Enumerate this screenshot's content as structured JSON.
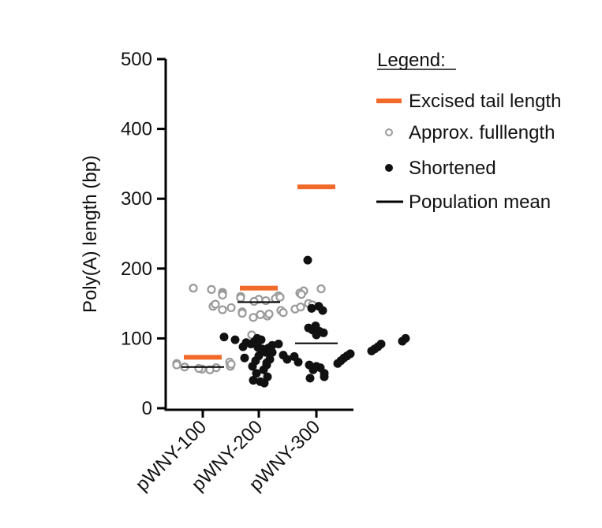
{
  "chart_data": {
    "type": "scatter",
    "title": "",
    "xlabel": "",
    "ylabel": "Poly(A) length (bp)",
    "ylim": [
      0,
      500
    ],
    "yticks": [
      0,
      100,
      200,
      300,
      400,
      500
    ],
    "grid": false,
    "legend_position": "top-right",
    "categories": [
      "pWNY-100",
      "pWNY-200",
      "pWNY-300"
    ],
    "legend": {
      "title": "Legend:",
      "items": [
        {
          "key": "excised",
          "label": "Excised tail length",
          "marker": "orange-bar"
        },
        {
          "key": "full",
          "label": "Approx. fulllength",
          "marker": "gray-open-circle"
        },
        {
          "key": "short",
          "label": "Shortened",
          "marker": "black-filled-circle"
        },
        {
          "key": "mean",
          "label": "Population mean",
          "marker": "black-line"
        }
      ]
    },
    "colors": {
      "excised": "#f26a2a",
      "full": "#9a9a9a",
      "short": "#111111",
      "mean": "#000000"
    },
    "excised_tail_length": [
      73,
      172,
      317
    ],
    "population_mean": [
      59,
      152,
      93
    ],
    "approx_fulllength": [
      [
        66,
        64,
        62,
        60,
        58,
        56,
        57,
        59,
        55,
        63
      ],
      [
        172,
        170,
        168,
        166,
        164,
        162,
        160,
        158,
        156,
        154,
        150,
        148,
        146,
        144,
        142,
        140,
        138,
        136,
        134,
        132,
        130,
        171,
        165,
        161,
        157,
        153,
        149,
        145,
        141,
        137,
        135,
        163,
        159,
        105
      ],
      []
    ],
    "shortened": [
      [],
      [
        100,
        98,
        95,
        92,
        90,
        87,
        85,
        82,
        80,
        75,
        72,
        70,
        68,
        65,
        62,
        60,
        55,
        50,
        45,
        40,
        38,
        36,
        92,
        88
      ],
      [
        212,
        146,
        143,
        140,
        118,
        115,
        112,
        110,
        108,
        105,
        102,
        100,
        98,
        96,
        94,
        92,
        90,
        88,
        86,
        85,
        84,
        82,
        80,
        78,
        76,
        75,
        74,
        72,
        70,
        68,
        66,
        64,
        62,
        60,
        58,
        55,
        50,
        45,
        43
      ]
    ]
  }
}
